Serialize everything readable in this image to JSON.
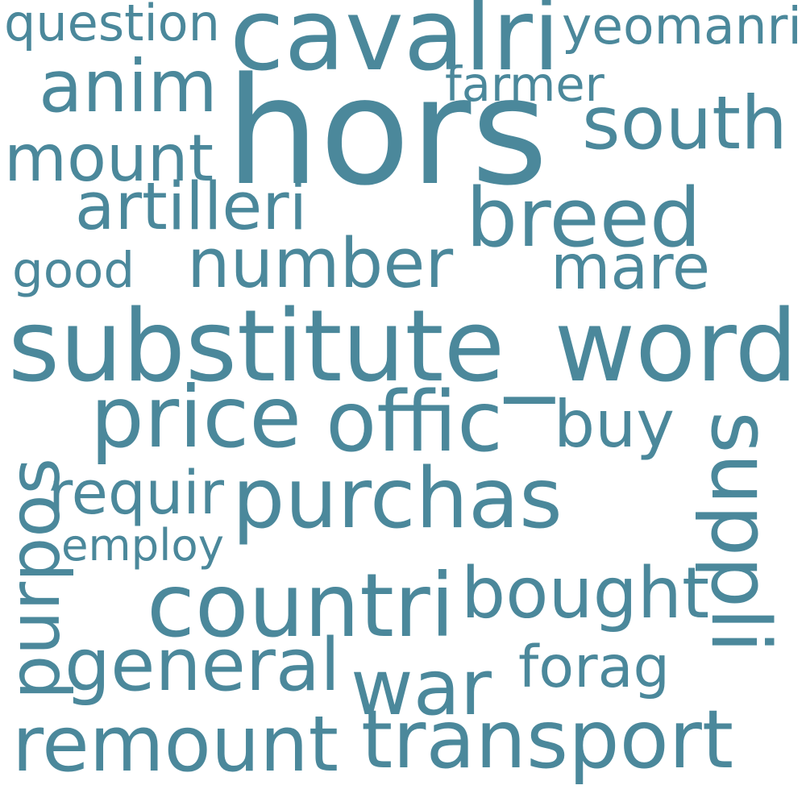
{
  "cloud": {
    "color": "#4b889b",
    "background": "#ffffff",
    "words": [
      {
        "text": "hors"
      },
      {
        "text": "substitute_word"
      },
      {
        "text": "cavalri"
      },
      {
        "text": "purchas"
      },
      {
        "text": "number"
      },
      {
        "text": "breed"
      },
      {
        "text": "remount"
      },
      {
        "text": "transport"
      },
      {
        "text": "anim"
      },
      {
        "text": "countri"
      },
      {
        "text": "bought"
      },
      {
        "text": "war"
      },
      {
        "text": "mount"
      },
      {
        "text": "south"
      },
      {
        "text": "price"
      },
      {
        "text": "mare"
      },
      {
        "text": "offic"
      },
      {
        "text": "buy"
      },
      {
        "text": "general"
      },
      {
        "text": "purpos"
      },
      {
        "text": "suppli"
      },
      {
        "text": "yeomanri"
      },
      {
        "text": "artilleri"
      },
      {
        "text": "forag"
      },
      {
        "text": "requir"
      },
      {
        "text": "good"
      },
      {
        "text": "farmer"
      },
      {
        "text": "employ"
      },
      {
        "text": "question"
      }
    ]
  }
}
